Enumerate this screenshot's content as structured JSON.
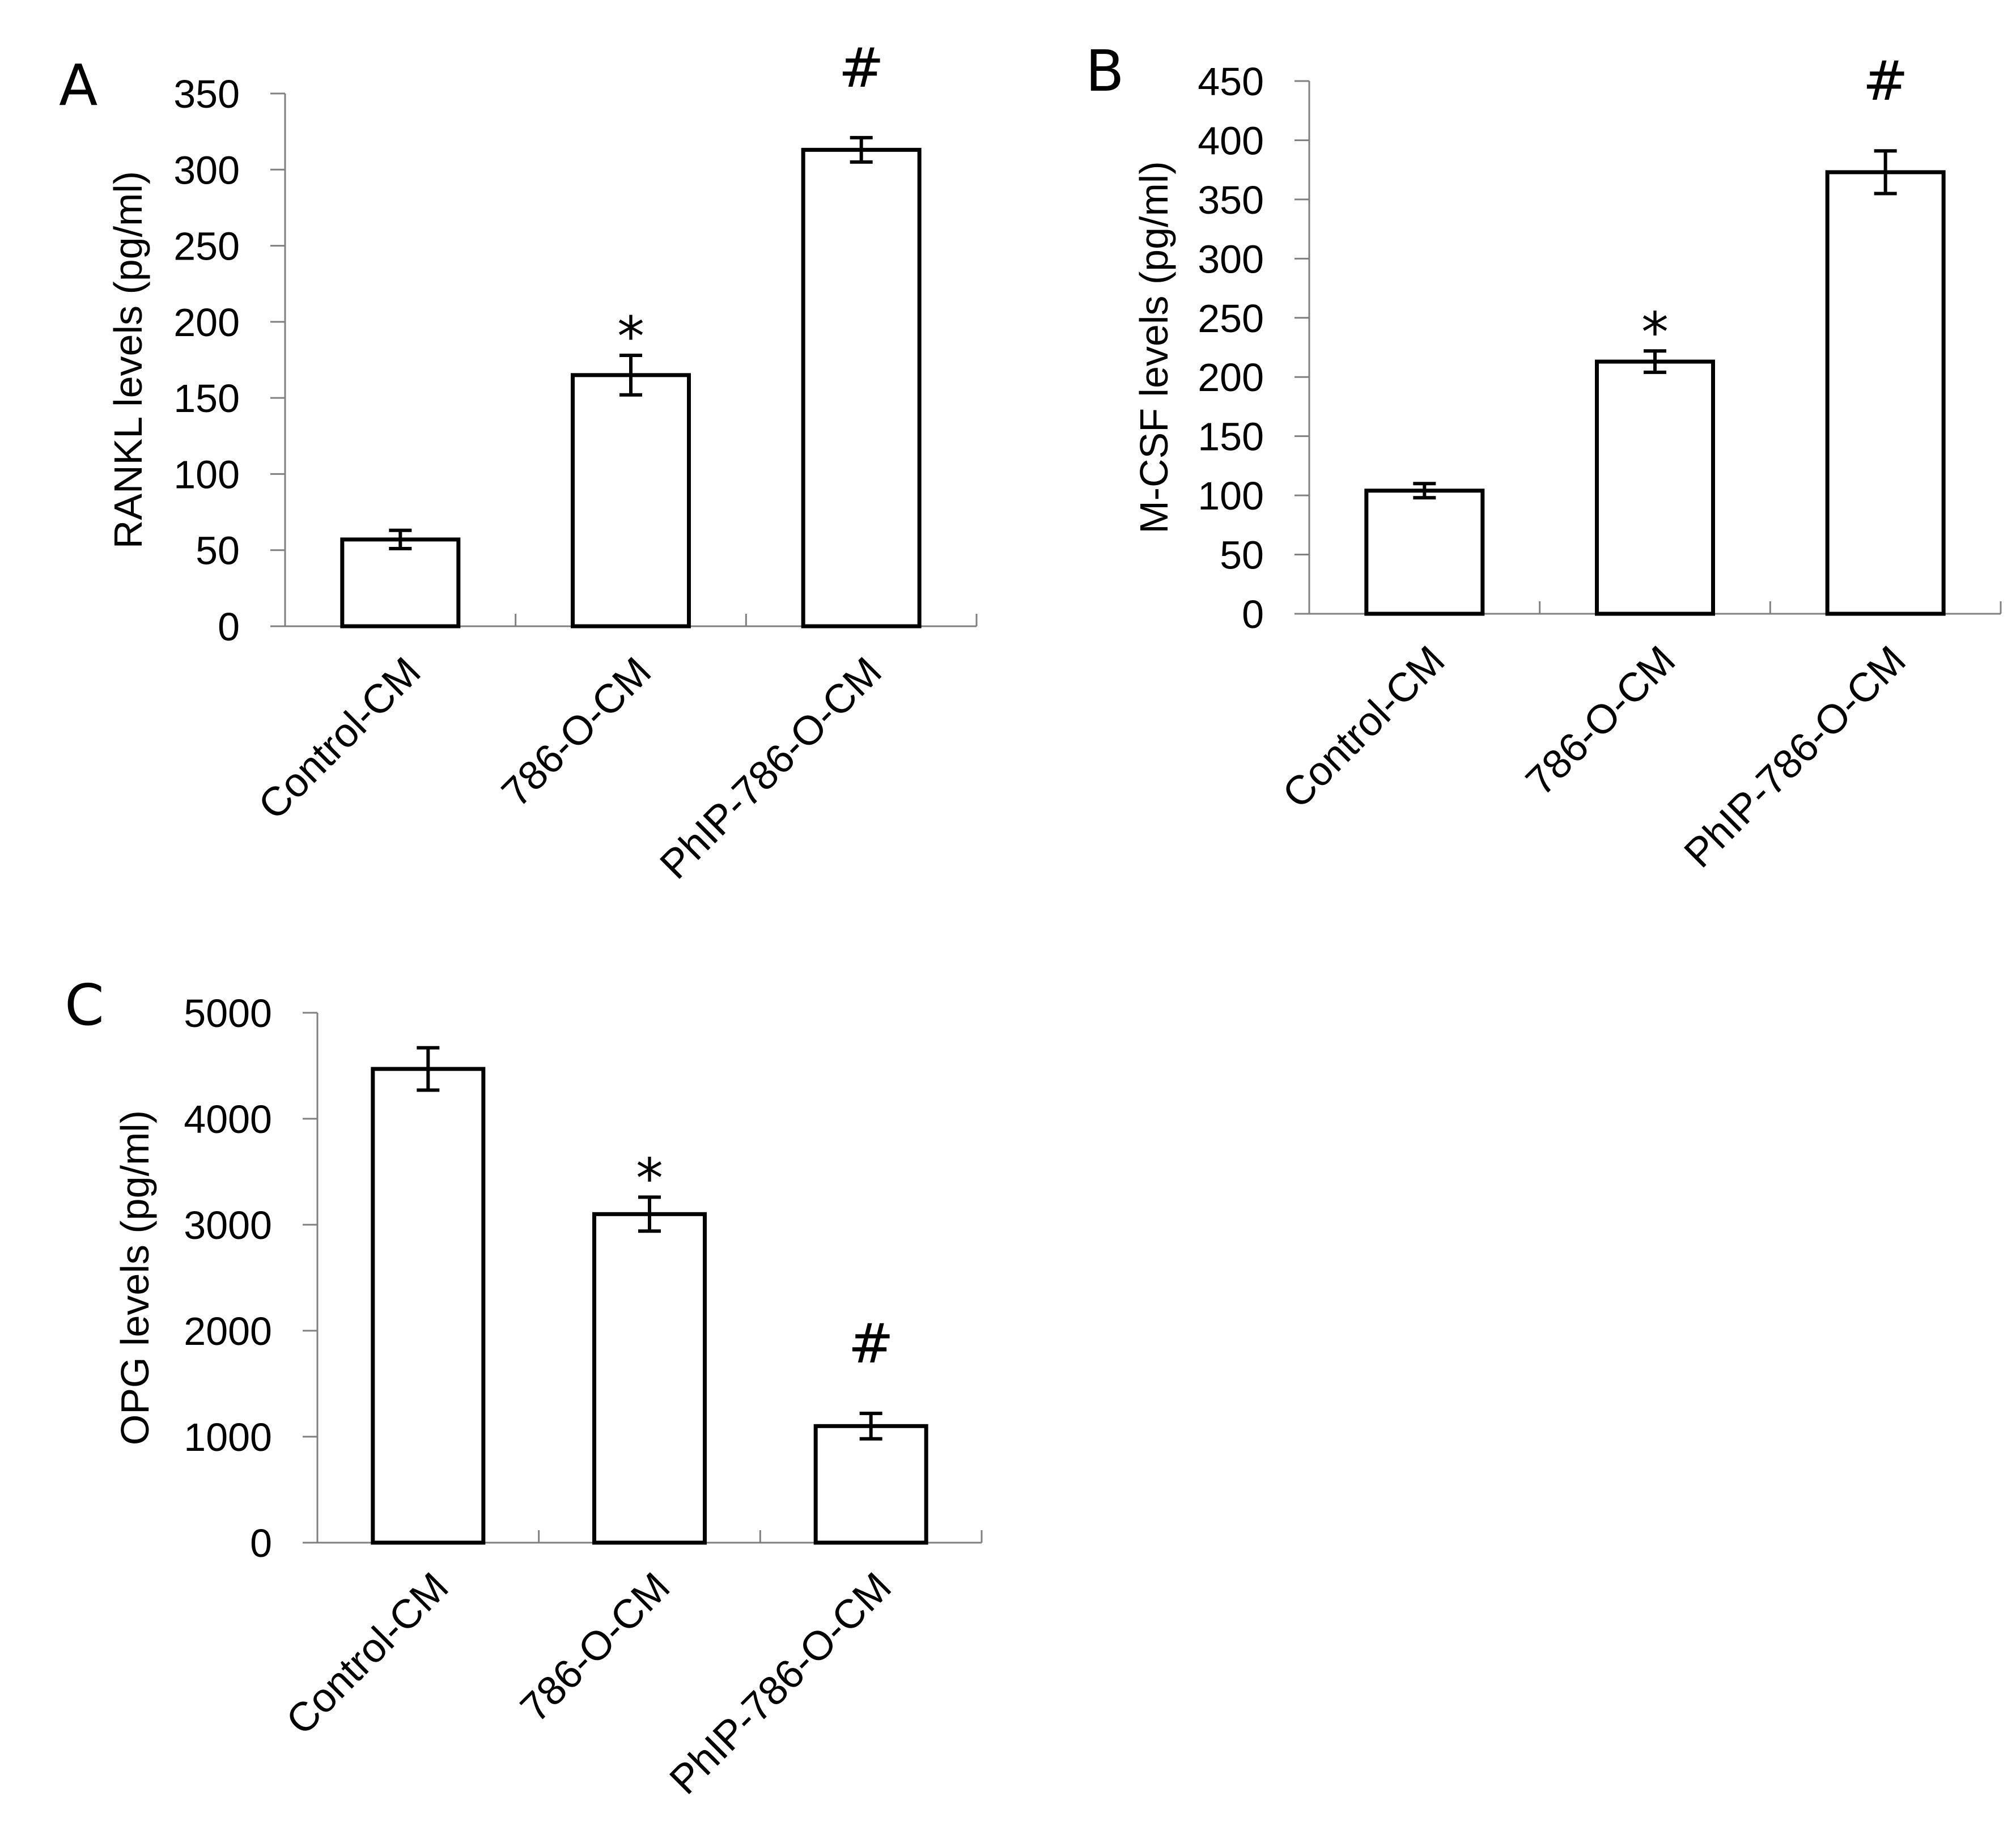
{
  "chart_data": [
    {
      "panel": "A",
      "type": "bar",
      "categories": [
        "Control-CM",
        "786-O-CM",
        "PhIP-786-O-CM"
      ],
      "values": [
        57,
        165,
        313
      ],
      "errors": [
        6,
        13,
        8
      ],
      "annotations": [
        "",
        "*",
        "#"
      ],
      "ylabel": "RANKL levels (pg/ml)",
      "xlabel": "",
      "ylim": [
        0,
        350
      ],
      "yticks": [
        0,
        50,
        100,
        150,
        200,
        250,
        300,
        350
      ],
      "grid": false,
      "colors": {
        "bar_fill": "#ffffff",
        "bar_stroke": "#000000",
        "axis": "#808080"
      }
    },
    {
      "panel": "B",
      "type": "bar",
      "categories": [
        "Control-CM",
        "786-O-CM",
        "PhIP-786-O-CM"
      ],
      "values": [
        104,
        213,
        373
      ],
      "errors": [
        6,
        9,
        18
      ],
      "annotations": [
        "",
        "*",
        "#"
      ],
      "ylabel": "M-CSF levels (pg/ml)",
      "xlabel": "",
      "ylim": [
        0,
        450
      ],
      "yticks": [
        0,
        50,
        100,
        150,
        200,
        250,
        300,
        350,
        400,
        450
      ],
      "grid": false,
      "colors": {
        "bar_fill": "#ffffff",
        "bar_stroke": "#000000",
        "axis": "#808080"
      }
    },
    {
      "panel": "C",
      "type": "bar",
      "categories": [
        "Control-CM",
        "786-O-CM",
        "PhIP-786-O-CM"
      ],
      "values": [
        4470,
        3100,
        1100
      ],
      "errors": [
        200,
        160,
        120
      ],
      "annotations": [
        "",
        "*",
        "#"
      ],
      "ylabel": "OPG levels (pg/ml)",
      "xlabel": "",
      "ylim": [
        0,
        5000
      ],
      "yticks": [
        0,
        1000,
        2000,
        3000,
        4000,
        5000
      ],
      "grid": false,
      "colors": {
        "bar_fill": "#ffffff",
        "bar_stroke": "#000000",
        "axis": "#808080"
      }
    }
  ]
}
